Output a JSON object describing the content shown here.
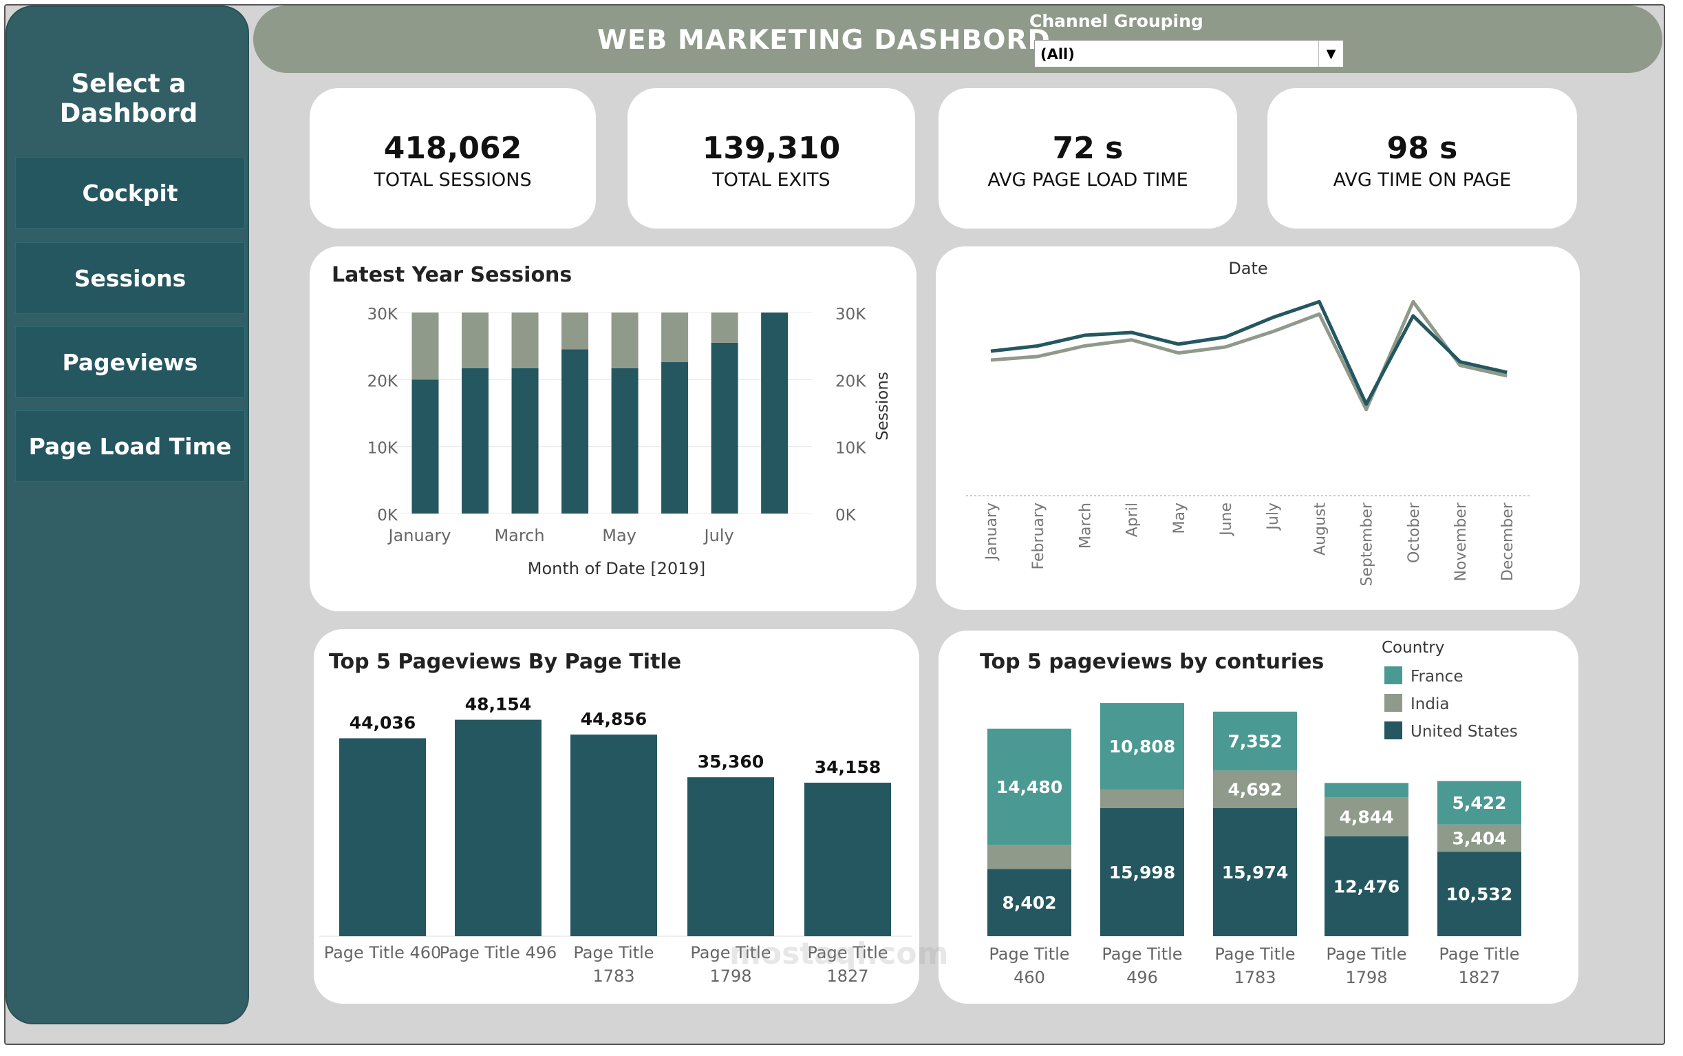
{
  "sidebar": {
    "title": "Select a Dashbord",
    "items": [
      {
        "label": "Cockpit"
      },
      {
        "label": "Sessions"
      },
      {
        "label": "Pageviews"
      },
      {
        "label": "Page Load Time"
      }
    ]
  },
  "header": {
    "title": "WEB MARKETING DASHBORD",
    "filter_label": "Channel Grouping",
    "filter_value": "(All)"
  },
  "kpis": [
    {
      "value": "418,062",
      "label": "TOTAL SESSIONS"
    },
    {
      "value": "139,310",
      "label": "TOTAL EXITS"
    },
    {
      "value": "72 s",
      "label": "AVG PAGE LOAD TIME"
    },
    {
      "value": "98 s",
      "label": "AVG TIME ON PAGE"
    }
  ],
  "colors": {
    "dark_teal": "#245760",
    "grey_green": "#8f9a8a",
    "france": "#4a9a93",
    "india": "#8f9a8a",
    "united_states": "#245760"
  },
  "chart_data": [
    {
      "type": "bar",
      "title": "Latest Year Sessions",
      "xlabel": "Month of Date [2019]",
      "ylabel": "Sessions",
      "categories": [
        "January",
        "February",
        "March",
        "April",
        "May",
        "June",
        "July",
        "August"
      ],
      "x_tick_labels": [
        "January",
        "March",
        "May",
        "July"
      ],
      "y_tick_labels": [
        "30K",
        "20K",
        "10K",
        "0K"
      ],
      "ylim": [
        0,
        30000
      ],
      "series": [
        {
          "values": [
            20000,
            21700,
            21700,
            24500,
            21700,
            22600,
            25500,
            30000
          ]
        },
        {
          "values": [
            10000,
            8300,
            8300,
            5500,
            8300,
            7400,
            4500,
            0
          ]
        }
      ]
    },
    {
      "type": "line",
      "title": "Date",
      "categories": [
        "January",
        "February",
        "March",
        "April",
        "May",
        "June",
        "July",
        "August",
        "September",
        "October",
        "November",
        "December"
      ],
      "series": [
        {
          "values": [
            36000,
            37500,
            40500,
            41300,
            38000,
            40000,
            45500,
            50000,
            21000,
            46000,
            33000,
            30000
          ]
        },
        {
          "values": [
            33500,
            34500,
            37500,
            39200,
            35500,
            37200,
            41500,
            46500,
            19500,
            50000,
            32000,
            29000
          ]
        }
      ]
    },
    {
      "type": "bar",
      "title": "Top 5 Pageviews By Page Title",
      "categories": [
        "Page Title 460",
        "Page Title 496",
        "Page Title 1783",
        "Page Title 1798",
        "Page Title 1827"
      ],
      "category_lines": [
        [
          "Page Title 460"
        ],
        [
          "Page Title 496"
        ],
        [
          "Page Title",
          "1783"
        ],
        [
          "Page Title",
          "1798"
        ],
        [
          "Page Title",
          "1827"
        ]
      ],
      "values": [
        44036,
        48154,
        44856,
        35360,
        34158
      ],
      "data_labels": [
        "44,036",
        "48,154",
        "44,856",
        "35,360",
        "34,158"
      ]
    },
    {
      "type": "bar",
      "title": "Top 5 pageviews by conturies",
      "stacked": true,
      "legend_title": "Country",
      "legend_position": "top-right",
      "categories": [
        "Page Title 460",
        "Page Title 496",
        "Page Title 1783",
        "Page Title 1798",
        "Page Title 1827"
      ],
      "category_lines": [
        [
          "Page Title",
          "460"
        ],
        [
          "Page Title",
          "496"
        ],
        [
          "Page Title",
          "1783"
        ],
        [
          "Page Title",
          "1798"
        ],
        [
          "Page Title",
          "1827"
        ]
      ],
      "series": [
        {
          "name": "United States",
          "values": [
            8402,
            15998,
            15974,
            12476,
            10532
          ],
          "labels": [
            "8,402",
            "15,998",
            "15,974",
            "12,476",
            "10,532"
          ]
        },
        {
          "name": "India",
          "values": [
            3000,
            2300,
            4692,
            4844,
            3404
          ],
          "labels": [
            "",
            "",
            "4,692",
            "4,844",
            "3,404"
          ]
        },
        {
          "name": "France",
          "values": [
            14480,
            10808,
            7352,
            1800,
            5422
          ],
          "labels": [
            "14,480",
            "10,808",
            "7,352",
            "",
            "5,422"
          ]
        }
      ],
      "legend": [
        "France",
        "India",
        "United States"
      ]
    }
  ],
  "watermark": "mostaql.com"
}
